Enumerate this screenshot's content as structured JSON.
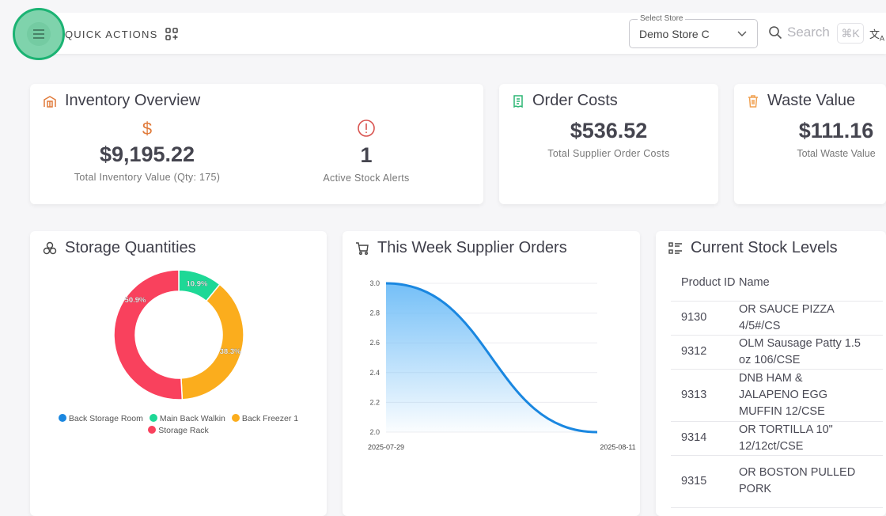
{
  "header": {
    "quick_actions": "QUICK ACTIONS",
    "store_label": "Select Store",
    "store_value": "Demo Store C",
    "search_placeholder": "Search",
    "shortcut": "⌘K",
    "lang_icon": "translate-icon"
  },
  "inventory": {
    "title": "Inventory Overview",
    "total_value": "$9,195.22",
    "total_label": "Total Inventory Value (Qty: 175)",
    "alerts": "1",
    "alerts_label": "Active Stock Alerts"
  },
  "orders": {
    "title": "Order Costs",
    "value": "$536.52",
    "label": "Total Supplier Order Costs"
  },
  "waste": {
    "title": "Waste Value",
    "value": "$111.16",
    "label": "Total Waste Value"
  },
  "storage": {
    "title": "Storage Quantities"
  },
  "supplier": {
    "title": "This Week Supplier Orders"
  },
  "stock": {
    "title": "Current Stock Levels",
    "headers": [
      "Product ID",
      "Name"
    ],
    "rows": [
      [
        "9130",
        "OR SAUCE PIZZA 4/5#/CS"
      ],
      [
        "9312",
        "OLM Sausage Patty 1.5 oz 106/CSE"
      ],
      [
        "9313",
        "DNB HAM & JALAPENO EGG MUFFIN 12/CSE"
      ],
      [
        "9314",
        "OR TORTILLA 10\" 12/12ct/CSE"
      ],
      [
        "9315",
        "OR BOSTON PULLED PORK"
      ]
    ]
  },
  "colors": {
    "accent": "#1bb373",
    "line": "#1a87e0",
    "orange": "#e07a3a",
    "red": "#d9534f"
  },
  "chart_data": [
    {
      "type": "pie",
      "title": "Storage Quantities",
      "categories": [
        "Back Storage Room",
        "Main Back Walkin",
        "Back Freezer 1",
        "Storage Rack"
      ],
      "values": [
        0,
        10.9,
        38.3,
        50.9
      ],
      "labels": [
        "",
        "10.9%",
        "38.3%",
        "50.9%"
      ],
      "colors": [
        "#1a87e0",
        "#1ed896",
        "#fbad1d",
        "#f9415d"
      ],
      "legend": "bottom"
    },
    {
      "type": "area",
      "title": "This Week Supplier Orders",
      "x": [
        "2025-07-29",
        "2025-08-11"
      ],
      "values": [
        3,
        2
      ],
      "ylim": [
        2,
        3
      ],
      "yticks": [
        "2.0",
        "2.2",
        "2.4",
        "2.6",
        "2.8",
        "3.0"
      ],
      "grid": true
    }
  ]
}
